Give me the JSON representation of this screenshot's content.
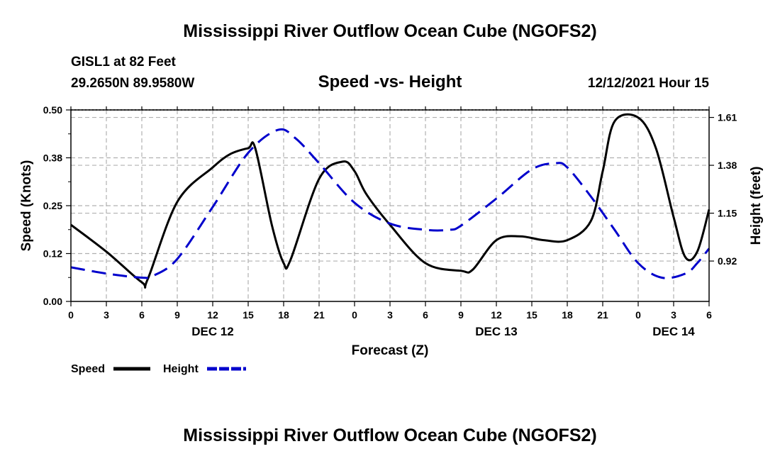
{
  "header": {
    "title": "Mississippi River Outflow Ocean Cube (NGOFS2)",
    "station": "GISL1 at 82 Feet",
    "coords": "29.2650N  89.9580W",
    "subtitle": "Speed -vs- Height",
    "datetime": "12/12/2021 Hour 15"
  },
  "footer": {
    "title": "Mississippi River Outflow Ocean Cube (NGOFS2)"
  },
  "colors": {
    "speed": "#000000",
    "height": "#0000cc",
    "grid": "#b0b0b0"
  },
  "chart_data": {
    "type": "line",
    "title": "Speed -vs- Height",
    "xlabel": "Forecast (Z)",
    "ylabel": "Speed (Knots)",
    "y2label": "Height (feet)",
    "xlim": [
      0,
      54
    ],
    "ylim": [
      0,
      0.5
    ],
    "y2lim": [
      0.726,
      1.646
    ],
    "x_ticks": [
      0,
      3,
      6,
      9,
      12,
      15,
      18,
      21,
      24,
      27,
      30,
      33,
      36,
      39,
      42,
      45,
      48,
      51,
      54
    ],
    "x_tick_labels": [
      "0",
      "3",
      "6",
      "9",
      "12",
      "15",
      "18",
      "21",
      "0",
      "3",
      "6",
      "9",
      "12",
      "15",
      "18",
      "21",
      "0",
      "3",
      "6"
    ],
    "y_ticks": [
      0,
      0.125,
      0.25,
      0.375,
      0.5
    ],
    "y_tick_labels": [
      "0.00",
      "0.12",
      "0.25",
      "0.38",
      "0.50"
    ],
    "y2_ticks": [
      0.92,
      1.15,
      1.38,
      1.61
    ],
    "y2_tick_labels": [
      "0.92",
      "1.15",
      "1.38",
      "1.61"
    ],
    "date_labels": [
      {
        "x": 12,
        "label": "DEC 12"
      },
      {
        "x": 36,
        "label": "DEC 13"
      },
      {
        "x": 51,
        "label": "DEC 14"
      }
    ],
    "series": [
      {
        "name": "Speed",
        "axis": "left",
        "style": "solid",
        "x": [
          0,
          3,
          6,
          6.5,
          9,
          12,
          13.5,
          15,
          15.6,
          17,
          18,
          18.6,
          21,
          23,
          24,
          25,
          27,
          30,
          33,
          34,
          36,
          38,
          40,
          42,
          44,
          45,
          46,
          48,
          49.5,
          51,
          52,
          53,
          54
        ],
        "values": [
          0.2,
          0.13,
          0.05,
          0.058,
          0.26,
          0.35,
          0.385,
          0.4,
          0.4,
          0.2,
          0.1,
          0.11,
          0.32,
          0.365,
          0.34,
          0.28,
          0.2,
          0.1,
          0.08,
          0.083,
          0.16,
          0.17,
          0.16,
          0.16,
          0.21,
          0.34,
          0.47,
          0.48,
          0.4,
          0.22,
          0.115,
          0.13,
          0.24
        ]
      },
      {
        "name": "Height",
        "axis": "right",
        "style": "dashed",
        "x": [
          0,
          3,
          6,
          7,
          9,
          12,
          15,
          17.5,
          19,
          21,
          24,
          27,
          30,
          32,
          33,
          36,
          39,
          41,
          42,
          44,
          46,
          48,
          50,
          52,
          53,
          54
        ],
        "values": [
          0.89,
          0.86,
          0.84,
          0.85,
          0.93,
          1.18,
          1.44,
          1.55,
          1.51,
          1.39,
          1.2,
          1.1,
          1.07,
          1.07,
          1.09,
          1.22,
          1.36,
          1.39,
          1.37,
          1.23,
          1.07,
          0.91,
          0.84,
          0.86,
          0.91,
          0.98
        ]
      }
    ],
    "legend": {
      "position": "bottom-left",
      "entries": [
        "Speed",
        "Height"
      ]
    }
  }
}
